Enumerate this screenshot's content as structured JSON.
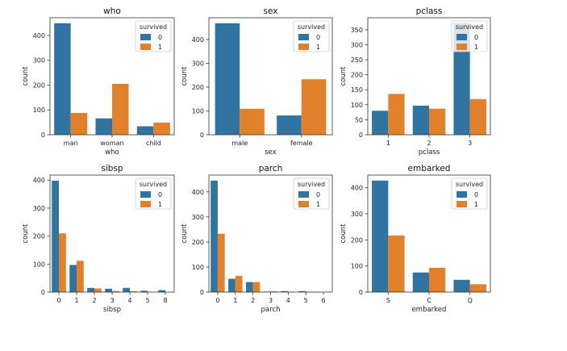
{
  "figure_title": "",
  "chart_data": [
    {
      "type": "bar",
      "title": "who",
      "xlabel": "who",
      "ylabel": "count",
      "categories": [
        "man",
        "woman",
        "child"
      ],
      "series": [
        {
          "name": "0",
          "values": [
            449,
            66,
            34
          ]
        },
        {
          "name": "1",
          "values": [
            88,
            205,
            49
          ]
        }
      ],
      "ylim": [
        0,
        471
      ],
      "yticks": [
        0,
        100,
        200,
        300,
        400
      ],
      "legend": {
        "title": "survived",
        "position": "top-right"
      }
    },
    {
      "type": "bar",
      "title": "sex",
      "xlabel": "sex",
      "ylabel": "count",
      "categories": [
        "male",
        "female"
      ],
      "series": [
        {
          "name": "0",
          "values": [
            468,
            81
          ]
        },
        {
          "name": "1",
          "values": [
            109,
            233
          ]
        }
      ],
      "ylim": [
        0,
        491
      ],
      "yticks": [
        0,
        100,
        200,
        300,
        400
      ],
      "legend": {
        "title": "survived",
        "position": "top-right"
      }
    },
    {
      "type": "bar",
      "title": "pclass",
      "xlabel": "pclass",
      "ylabel": "count",
      "categories": [
        "1",
        "2",
        "3"
      ],
      "series": [
        {
          "name": "0",
          "values": [
            80,
            97,
            372
          ]
        },
        {
          "name": "1",
          "values": [
            136,
            87,
            119
          ]
        }
      ],
      "ylim": [
        0,
        390
      ],
      "yticks": [
        0,
        50,
        100,
        150,
        200,
        250,
        300,
        350
      ],
      "legend": {
        "title": "survived",
        "position": "top-right"
      }
    },
    {
      "type": "bar",
      "title": "sibsp",
      "xlabel": "sibsp",
      "ylabel": "count",
      "categories": [
        "0",
        "1",
        "2",
        "3",
        "4",
        "5",
        "8"
      ],
      "series": [
        {
          "name": "0",
          "values": [
            398,
            97,
            15,
            12,
            15,
            5,
            7
          ]
        },
        {
          "name": "1",
          "values": [
            210,
            112,
            13,
            4,
            3,
            0,
            0
          ]
        }
      ],
      "ylim": [
        0,
        418
      ],
      "yticks": [
        0,
        100,
        200,
        300,
        400
      ],
      "legend": {
        "title": "survived",
        "position": "top-right"
      }
    },
    {
      "type": "bar",
      "title": "parch",
      "xlabel": "parch",
      "ylabel": "count",
      "categories": [
        "0",
        "1",
        "2",
        "3",
        "4",
        "5",
        "6"
      ],
      "series": [
        {
          "name": "0",
          "values": [
            445,
            53,
            40,
            2,
            4,
            4,
            1
          ]
        },
        {
          "name": "1",
          "values": [
            233,
            65,
            40,
            3,
            0,
            1,
            0
          ]
        }
      ],
      "ylim": [
        0,
        467
      ],
      "yticks": [
        0,
        100,
        200,
        300,
        400
      ],
      "legend": {
        "title": "survived",
        "position": "top-right"
      }
    },
    {
      "type": "bar",
      "title": "embarked",
      "xlabel": "embarked",
      "ylabel": "count",
      "categories": [
        "S",
        "C",
        "Q"
      ],
      "series": [
        {
          "name": "0",
          "values": [
            427,
            75,
            47
          ]
        },
        {
          "name": "1",
          "values": [
            217,
            93,
            30
          ]
        }
      ],
      "ylim": [
        0,
        448
      ],
      "yticks": [
        0,
        100,
        200,
        300,
        400
      ],
      "legend": {
        "title": "survived",
        "position": "top-right"
      }
    }
  ],
  "colors": {
    "series_0": "#3274a1",
    "series_1": "#e1812c",
    "axis": "#333333",
    "legend_border": "#cccccc"
  }
}
